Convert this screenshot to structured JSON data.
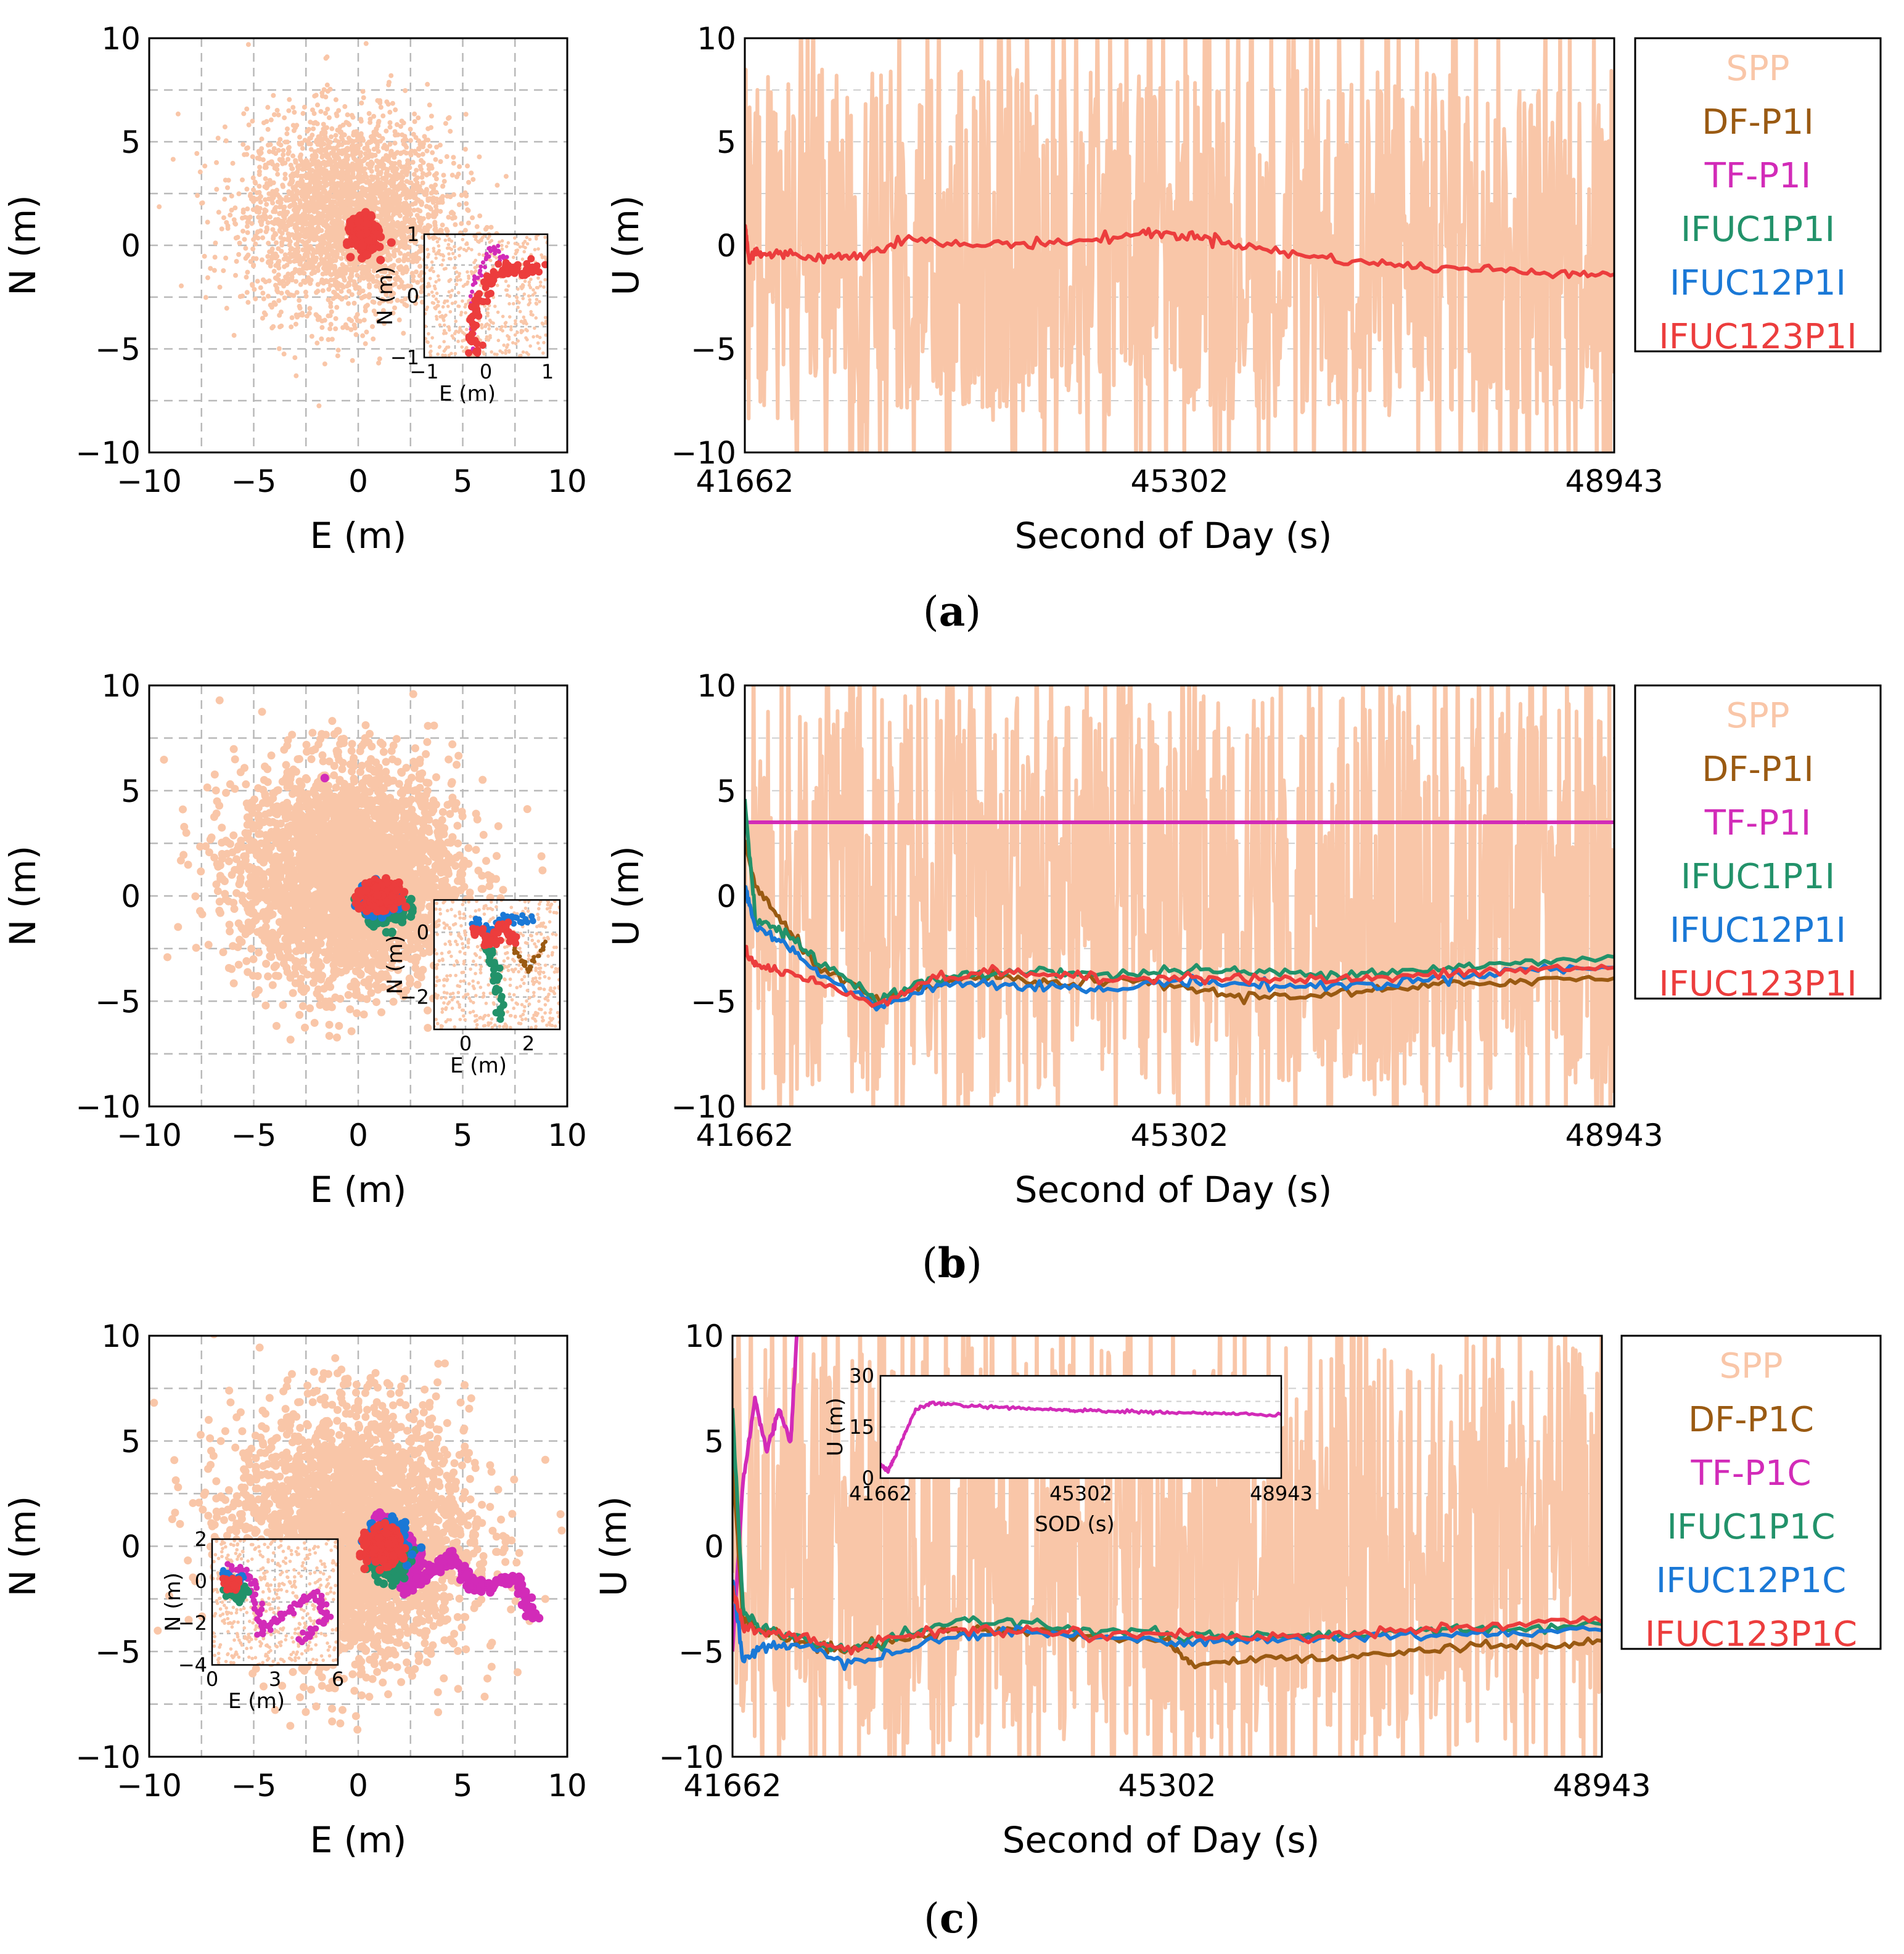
{
  "colors": {
    "SPP": "#f9c6a8",
    "DF": "#9a5a12",
    "TF": "#d22bb8",
    "IFUC1": "#22926a",
    "IFUC12": "#1a78d6",
    "IFUC123": "#ec3d3d",
    "grid": "#b9b9b9"
  },
  "panels": [
    {
      "label_open": "(",
      "label_letter": "a",
      "label_close": ")",
      "legend": [
        "SPP",
        "DF-P1I",
        "TF-P1I",
        "IFUC1P1I",
        "IFUC12P1I",
        "IFUC123P1I"
      ]
    },
    {
      "label_open": "(",
      "label_letter": "b",
      "label_close": ")",
      "legend": [
        "SPP",
        "DF-P1I",
        "TF-P1I",
        "IFUC1P1I",
        "IFUC12P1I",
        "IFUC123P1I"
      ]
    },
    {
      "label_open": "(",
      "label_letter": "c",
      "label_close": ")",
      "legend": [
        "SPP",
        "DF-P1C",
        "TF-P1C",
        "IFUC1P1C",
        "IFUC12P1C",
        "IFUC123P1C"
      ]
    }
  ],
  "chart_data": [
    {
      "panel": "a",
      "type": "scatter",
      "xlabel": "E (m)",
      "ylabel": "N (m)",
      "xlim": [
        -10,
        10
      ],
      "ylim": [
        -10,
        10
      ],
      "xticks": [
        "−10",
        "−5",
        "0",
        "5",
        "10"
      ],
      "yticks": [
        "10",
        "5",
        "0",
        "−5",
        "−10"
      ],
      "grid": true,
      "series": [
        {
          "name": "SPP",
          "cloud_center": [
            -0.5,
            1.5
          ],
          "cloud_spread": [
            2.4,
            2.3
          ]
        },
        {
          "name": "IFUC123P1I",
          "cluster_center": [
            0.3,
            0.5
          ],
          "cluster_spread": [
            0.3,
            0.4
          ]
        }
      ],
      "inset": {
        "xlabel": "E (m)",
        "ylabel": "N (m)",
        "xlim": [
          -1,
          1
        ],
        "ylim": [
          -1,
          1
        ],
        "xticks": [
          "−1",
          "0",
          "1"
        ],
        "yticks": [
          "1",
          "0",
          "−1"
        ]
      }
    },
    {
      "panel": "a",
      "type": "line",
      "xlabel": "Second of Day (s)",
      "ylabel": "U (m)",
      "xlim": [
        41662,
        48943
      ],
      "ylim": [
        -10,
        10
      ],
      "xticks": [
        "41662",
        "45302",
        "48943"
      ],
      "yticks": [
        "10",
        "5",
        "0",
        "−5",
        "−10"
      ],
      "grid": true,
      "legend_position": "right",
      "series": [
        {
          "name": "SPP",
          "note_amplitude_m": 8.5
        },
        {
          "name": "IFUC123P1I",
          "x": [
            41662,
            41700,
            41750,
            41800,
            42000,
            42300,
            42600,
            43000,
            43500,
            44000,
            44500,
            45000,
            45302,
            45600,
            46000,
            46500,
            47000,
            47500,
            48000,
            48500,
            48943
          ],
          "y": [
            1.0,
            -0.8,
            -0.2,
            -0.5,
            -0.4,
            -0.6,
            -0.5,
            0.3,
            0.0,
            0.1,
            0.2,
            0.6,
            0.5,
            0.3,
            -0.2,
            -0.6,
            -0.9,
            -1.1,
            -1.2,
            -1.3,
            -1.4
          ]
        }
      ]
    },
    {
      "panel": "b",
      "type": "scatter",
      "xlabel": "E (m)",
      "ylabel": "N (m)",
      "xlim": [
        -10,
        10
      ],
      "ylim": [
        -10,
        10
      ],
      "xticks": [
        "−10",
        "−5",
        "0",
        "5",
        "10"
      ],
      "yticks": [
        "10",
        "5",
        "0",
        "−5",
        "−10"
      ],
      "grid": true,
      "series": [
        {
          "name": "SPP",
          "cloud_center": [
            -0.5,
            1.0
          ],
          "cloud_spread": [
            2.6,
            2.6
          ]
        },
        {
          "name": "TF-P1I",
          "points": [
            [
              -1.6,
              5.6
            ]
          ]
        },
        {
          "name": "IFUC1P1I",
          "cluster_center": [
            1.3,
            -0.5
          ],
          "cluster_spread": [
            0.5,
            0.4
          ]
        },
        {
          "name": "IFUC12P1I",
          "cluster_center": [
            1.0,
            -0.2
          ],
          "cluster_spread": [
            0.4,
            0.3
          ]
        },
        {
          "name": "IFUC123P1I",
          "cluster_center": [
            1.0,
            0.0
          ],
          "cluster_spread": [
            0.4,
            0.3
          ]
        }
      ],
      "inset": {
        "xlabel": "E (m)",
        "ylabel": "N (m)",
        "xlim": [
          -1,
          3
        ],
        "ylim": [
          -3,
          1
        ],
        "xticks": [
          "0",
          "2"
        ],
        "yticks": [
          "0",
          "−2"
        ]
      }
    },
    {
      "panel": "b",
      "type": "line",
      "xlabel": "Second of Day (s)",
      "ylabel": "U (m)",
      "xlim": [
        41662,
        48943
      ],
      "ylim": [
        -10,
        10
      ],
      "xticks": [
        "41662",
        "45302",
        "48943"
      ],
      "yticks": [
        "10",
        "5",
        "0",
        "−5",
        "−10"
      ],
      "grid": true,
      "legend_position": "right",
      "series": [
        {
          "name": "SPP",
          "note_amplitude_m": 9.5
        },
        {
          "name": "TF-P1I",
          "x": [
            41662,
            48943
          ],
          "y": [
            3.5,
            3.5
          ]
        },
        {
          "name": "DF-P1I",
          "x": [
            41662,
            41750,
            42000,
            42300,
            42800,
            43200,
            43700,
            44200,
            44700,
            45302,
            45800,
            46400,
            47000,
            47600,
            48200,
            48943
          ],
          "y": [
            2.5,
            0.5,
            -1.5,
            -3.5,
            -5.0,
            -4.3,
            -3.8,
            -4.2,
            -4.0,
            -4.3,
            -4.8,
            -4.7,
            -4.5,
            -4.2,
            -4.0,
            -3.9
          ]
        },
        {
          "name": "IFUC1P1I",
          "x": [
            41662,
            41750,
            42000,
            42300,
            42800,
            43200,
            43700,
            44200,
            44700,
            45302,
            45800,
            46400,
            47000,
            47600,
            48200,
            48943
          ],
          "y": [
            4.5,
            -1.0,
            -1.8,
            -3.2,
            -4.9,
            -4.0,
            -3.7,
            -3.5,
            -3.8,
            -3.5,
            -3.6,
            -3.7,
            -3.6,
            -3.4,
            -3.2,
            -2.9
          ]
        },
        {
          "name": "IFUC12P1I",
          "x": [
            41662,
            41750,
            42000,
            42300,
            42800,
            43200,
            43700,
            44200,
            44700,
            45302,
            45800,
            46400,
            47000,
            47600,
            48200,
            48943
          ],
          "y": [
            0.5,
            -1.5,
            -2.2,
            -3.8,
            -5.3,
            -4.3,
            -4.1,
            -4.3,
            -4.5,
            -4.0,
            -4.2,
            -4.3,
            -4.2,
            -3.8,
            -3.5,
            -3.4
          ]
        },
        {
          "name": "IFUC123P1I",
          "x": [
            41662,
            41750,
            42000,
            42300,
            42800,
            43200,
            43700,
            44200,
            44700,
            45302,
            45800,
            46400,
            47000,
            47600,
            48200,
            48943
          ],
          "y": [
            -2.5,
            -3.3,
            -3.6,
            -4.2,
            -5.1,
            -4.0,
            -3.6,
            -3.7,
            -4.0,
            -3.8,
            -3.9,
            -4.0,
            -3.9,
            -3.7,
            -3.5,
            -3.4
          ]
        }
      ]
    },
    {
      "panel": "c",
      "type": "scatter",
      "xlabel": "E (m)",
      "ylabel": "N (m)",
      "xlim": [
        -10,
        10
      ],
      "ylim": [
        -10,
        10
      ],
      "xticks": [
        "−10",
        "−5",
        "0",
        "5",
        "10"
      ],
      "yticks": [
        "10",
        "5",
        "0",
        "−5",
        "−10"
      ],
      "grid": true,
      "series": [
        {
          "name": "SPP",
          "cloud_center": [
            -0.3,
            0.5
          ],
          "cloud_spread": [
            2.8,
            3.0
          ]
        },
        {
          "name": "TF-P1C",
          "path": [
            [
              1.0,
              1.5
            ],
            [
              2.0,
              0.5
            ],
            [
              3.0,
              -0.5
            ],
            [
              2.2,
              -2.0
            ],
            [
              3.0,
              -1.5
            ],
            [
              4.5,
              -0.5
            ],
            [
              5.5,
              -1.8
            ],
            [
              6.0,
              -2.0
            ],
            [
              7.5,
              -1.5
            ],
            [
              8.5,
              -3.5
            ]
          ]
        },
        {
          "name": "IFUC1P1C",
          "cluster_center": [
            1.5,
            -0.5
          ],
          "cluster_spread": [
            0.4,
            0.5
          ]
        },
        {
          "name": "IFUC12P1C",
          "cluster_center": [
            1.3,
            0.3
          ],
          "cluster_spread": [
            0.4,
            0.4
          ]
        },
        {
          "name": "IFUC123P1C",
          "cluster_center": [
            1.2,
            0.0
          ],
          "cluster_spread": [
            0.4,
            0.4
          ]
        }
      ],
      "inset": {
        "xlabel": "E (m)",
        "ylabel": "N (m)",
        "xlim": [
          0,
          6
        ],
        "ylim": [
          -4,
          2
        ],
        "xticks": [
          "0",
          "3",
          "6"
        ],
        "yticks": [
          "2",
          "0",
          "−2",
          "−4"
        ]
      }
    },
    {
      "panel": "c",
      "type": "line",
      "xlabel": "Second of Day (s)",
      "ylabel": "U (m)",
      "xlim": [
        41662,
        48943
      ],
      "ylim": [
        -10,
        10
      ],
      "xticks": [
        "41662",
        "45302",
        "48943"
      ],
      "yticks": [
        "10",
        "5",
        "0",
        "−5",
        "−10"
      ],
      "grid": true,
      "legend_position": "right",
      "series": [
        {
          "name": "SPP",
          "note_amplitude_m": 9.5
        },
        {
          "name": "TF-P1C",
          "x": [
            41662,
            41750,
            41850,
            41950,
            42050,
            42150,
            42200
          ],
          "y": [
            -5.0,
            3.0,
            7.0,
            4.5,
            6.5,
            5.0,
            10.0
          ]
        },
        {
          "name": "DF-P1C",
          "x": [
            41662,
            41750,
            41900,
            42200,
            42600,
            43000,
            43500,
            44000,
            44600,
            45302,
            45500,
            46000,
            46600,
            47200,
            47800,
            48400,
            48943
          ],
          "y": [
            4.0,
            -3.5,
            -4.0,
            -4.5,
            -5.0,
            -4.5,
            -4.0,
            -4.0,
            -4.2,
            -4.5,
            -5.6,
            -5.4,
            -5.3,
            -5.0,
            -4.8,
            -4.7,
            -4.5
          ]
        },
        {
          "name": "IFUC1P1C",
          "x": [
            41662,
            41750,
            41900,
            42200,
            42600,
            43000,
            43500,
            44000,
            44600,
            45302,
            45800,
            46400,
            47000,
            47600,
            48200,
            48943
          ],
          "y": [
            6.5,
            -3.0,
            -4.0,
            -4.3,
            -5.0,
            -4.5,
            -3.6,
            -3.5,
            -4.0,
            -4.2,
            -4.3,
            -4.3,
            -4.2,
            -4.0,
            -3.9,
            -3.7
          ]
        },
        {
          "name": "IFUC12P1C",
          "x": [
            41662,
            41750,
            41900,
            42200,
            42600,
            43000,
            43500,
            44000,
            44600,
            45302,
            45800,
            46400,
            47000,
            47600,
            48200,
            48943
          ],
          "y": [
            -1.5,
            -5.5,
            -4.8,
            -4.6,
            -5.5,
            -5.0,
            -4.3,
            -4.0,
            -4.3,
            -4.5,
            -4.5,
            -4.4,
            -4.3,
            -4.2,
            -4.1,
            -4.0
          ]
        },
        {
          "name": "IFUC123P1C",
          "x": [
            41662,
            41750,
            41900,
            42200,
            42600,
            43000,
            43500,
            44000,
            44600,
            45302,
            45800,
            46400,
            47000,
            47600,
            48200,
            48943
          ],
          "y": [
            -2.0,
            -3.8,
            -4.0,
            -4.2,
            -5.0,
            -4.3,
            -4.0,
            -4.0,
            -4.1,
            -4.2,
            -4.3,
            -4.3,
            -4.1,
            -3.9,
            -3.7,
            -3.6
          ]
        }
      ],
      "inset": {
        "xlabel": "SOD (s)",
        "ylabel": "U (m)",
        "xlim": [
          41662,
          48943
        ],
        "ylim": [
          0,
          30
        ],
        "xticks": [
          "41662",
          "45302",
          "48943"
        ],
        "yticks": [
          "30",
          "15",
          "0"
        ],
        "series": [
          {
            "name": "TF-P1C",
            "x": [
              41662,
              41800,
              41950,
              42100,
              42300,
              42600,
              43000,
              43500,
              44000,
              44500,
              45000,
              45302,
              45800,
              46400,
              47000,
              47600,
              48200,
              48943
            ],
            "y": [
              4,
              2,
              7,
              13,
              20,
              22,
              21.5,
              21,
              20.5,
              20.2,
              20.0,
              19.8,
              19.6,
              19.4,
              19.2,
              19.0,
              18.8,
              18.6
            ]
          }
        ]
      }
    }
  ]
}
